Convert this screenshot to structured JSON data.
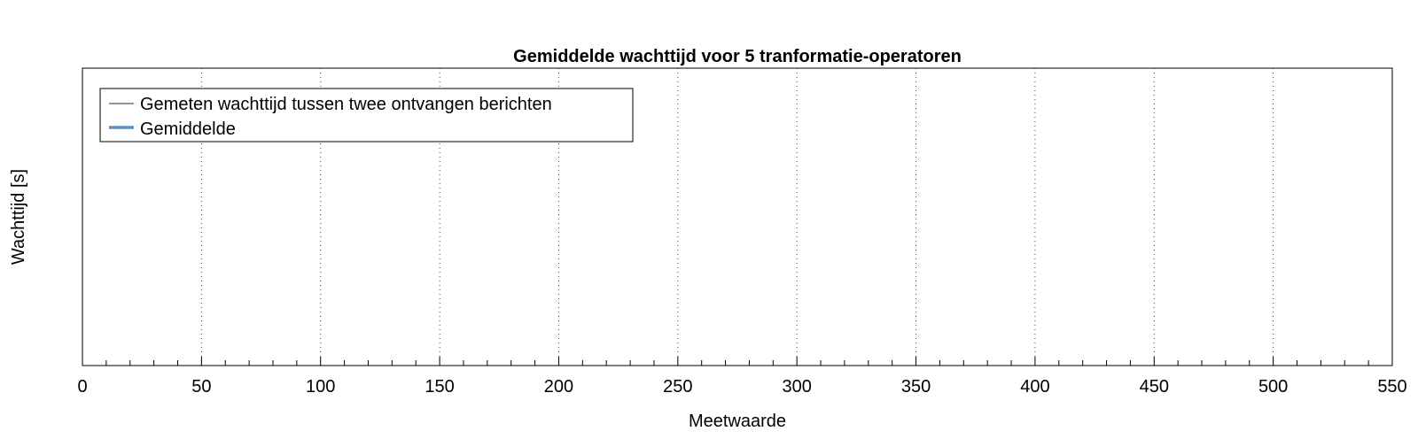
{
  "chart_data": {
    "type": "line",
    "title": "Gemiddelde wachttijd voor 5 tranformatie-operatoren",
    "xlabel": "Meetwaarde",
    "ylabel": "Wachttijd [s]",
    "xlim": [
      0,
      550
    ],
    "x_major_ticks": [
      0,
      50,
      100,
      150,
      200,
      250,
      300,
      350,
      400,
      450,
      500,
      550
    ],
    "x_tick_labels": [
      "0",
      "50",
      "100",
      "150",
      "200",
      "250",
      "300",
      "350",
      "400",
      "450",
      "500",
      "550"
    ],
    "x_minor_step": 10,
    "grid": "x-major-dotted",
    "legend_placement": "top-left",
    "series": [
      {
        "name": "Gemeten wachttijd tussen twee ontvangen berichten",
        "color": "#555555",
        "values": []
      },
      {
        "name": "Gemiddelde",
        "color": "#5b8fc0",
        "values": []
      }
    ]
  }
}
